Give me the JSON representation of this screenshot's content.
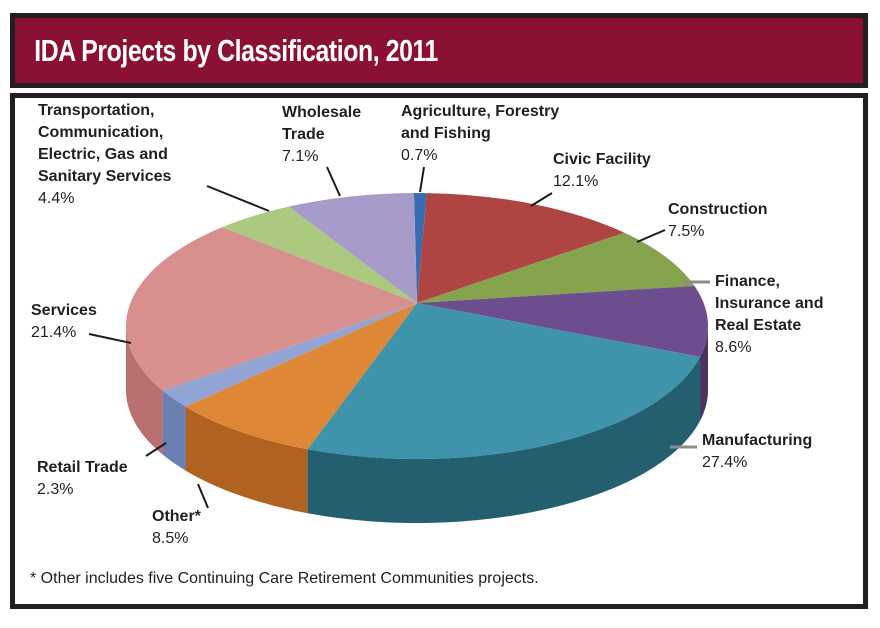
{
  "header": {
    "title": "IDA Projects by Classification, 2011"
  },
  "footnote": "* Other includes five Continuing Care Retirement Communities projects.",
  "colors": {
    "header_bg": "#8B1133",
    "border": "#231F20",
    "text": "#231F20",
    "leader_line_black": "#1B1B1B",
    "leader_line_gray": "#8C8C8C",
    "panel_bg": "#FFFFFF"
  },
  "chart_data": {
    "type": "pie",
    "is_3d": true,
    "title": "IDA Projects by Classification, 2011",
    "unit": "%",
    "total": 100,
    "direction": "clockwise",
    "start_angle_deg_from_top": -0.6,
    "legend": "none (callout labels with leader lines)",
    "slices": [
      {
        "label": "Agriculture, Forestry and Fishing",
        "label_lines": [
          "Agriculture, Forestry",
          "and Fishing"
        ],
        "value": 0.7,
        "pct_label": "0.7%",
        "color": "#3A6CB4",
        "side_color": "#27497A"
      },
      {
        "label": "Civic Facility",
        "label_lines": [
          "Civic Facility"
        ],
        "value": 12.1,
        "pct_label": "12.1%",
        "color": "#AF4542",
        "side_color": "#772F2D"
      },
      {
        "label": "Construction",
        "label_lines": [
          "Construction"
        ],
        "value": 7.5,
        "pct_label": "7.5%",
        "color": "#86A44E",
        "side_color": "#5B6F35"
      },
      {
        "label": "Finance, Insurance and Real Estate",
        "label_lines": [
          "Finance,",
          "Insurance and",
          "Real Estate"
        ],
        "value": 8.6,
        "pct_label": "8.6%",
        "color": "#6C4D8D",
        "side_color": "#4A3560"
      },
      {
        "label": "Manufacturing",
        "label_lines": [
          "Manufacturing"
        ],
        "value": 27.4,
        "pct_label": "27.4%",
        "color": "#3F93AA",
        "side_color": "#235F6E"
      },
      {
        "label": "Other*",
        "label_lines": [
          "Other*"
        ],
        "value": 8.5,
        "pct_label": "8.5%",
        "color": "#DE8837",
        "side_color": "#B06321"
      },
      {
        "label": "Retail Trade",
        "label_lines": [
          "Retail Trade"
        ],
        "value": 2.3,
        "pct_label": "2.3%",
        "color": "#92A4D4",
        "side_color": "#6C7FB2"
      },
      {
        "label": "Services",
        "label_lines": [
          "Services"
        ],
        "value": 21.4,
        "pct_label": "21.4%",
        "color": "#D8908F",
        "side_color": "#BA6F70"
      },
      {
        "label": "Transportation, Communication, Electric, Gas and Sanitary Services",
        "label_lines": [
          "Transportation,",
          "Communication,",
          "Electric, Gas and",
          "Sanitary Services"
        ],
        "value": 4.4,
        "pct_label": "4.4%",
        "color": "#ABC97F",
        "side_color": "#788F55"
      },
      {
        "label": "Wholesale Trade",
        "label_lines": [
          "Wholesale",
          "Trade"
        ],
        "value": 7.1,
        "pct_label": "7.1%",
        "color": "#A79BC9",
        "side_color": "#786D96"
      }
    ]
  }
}
